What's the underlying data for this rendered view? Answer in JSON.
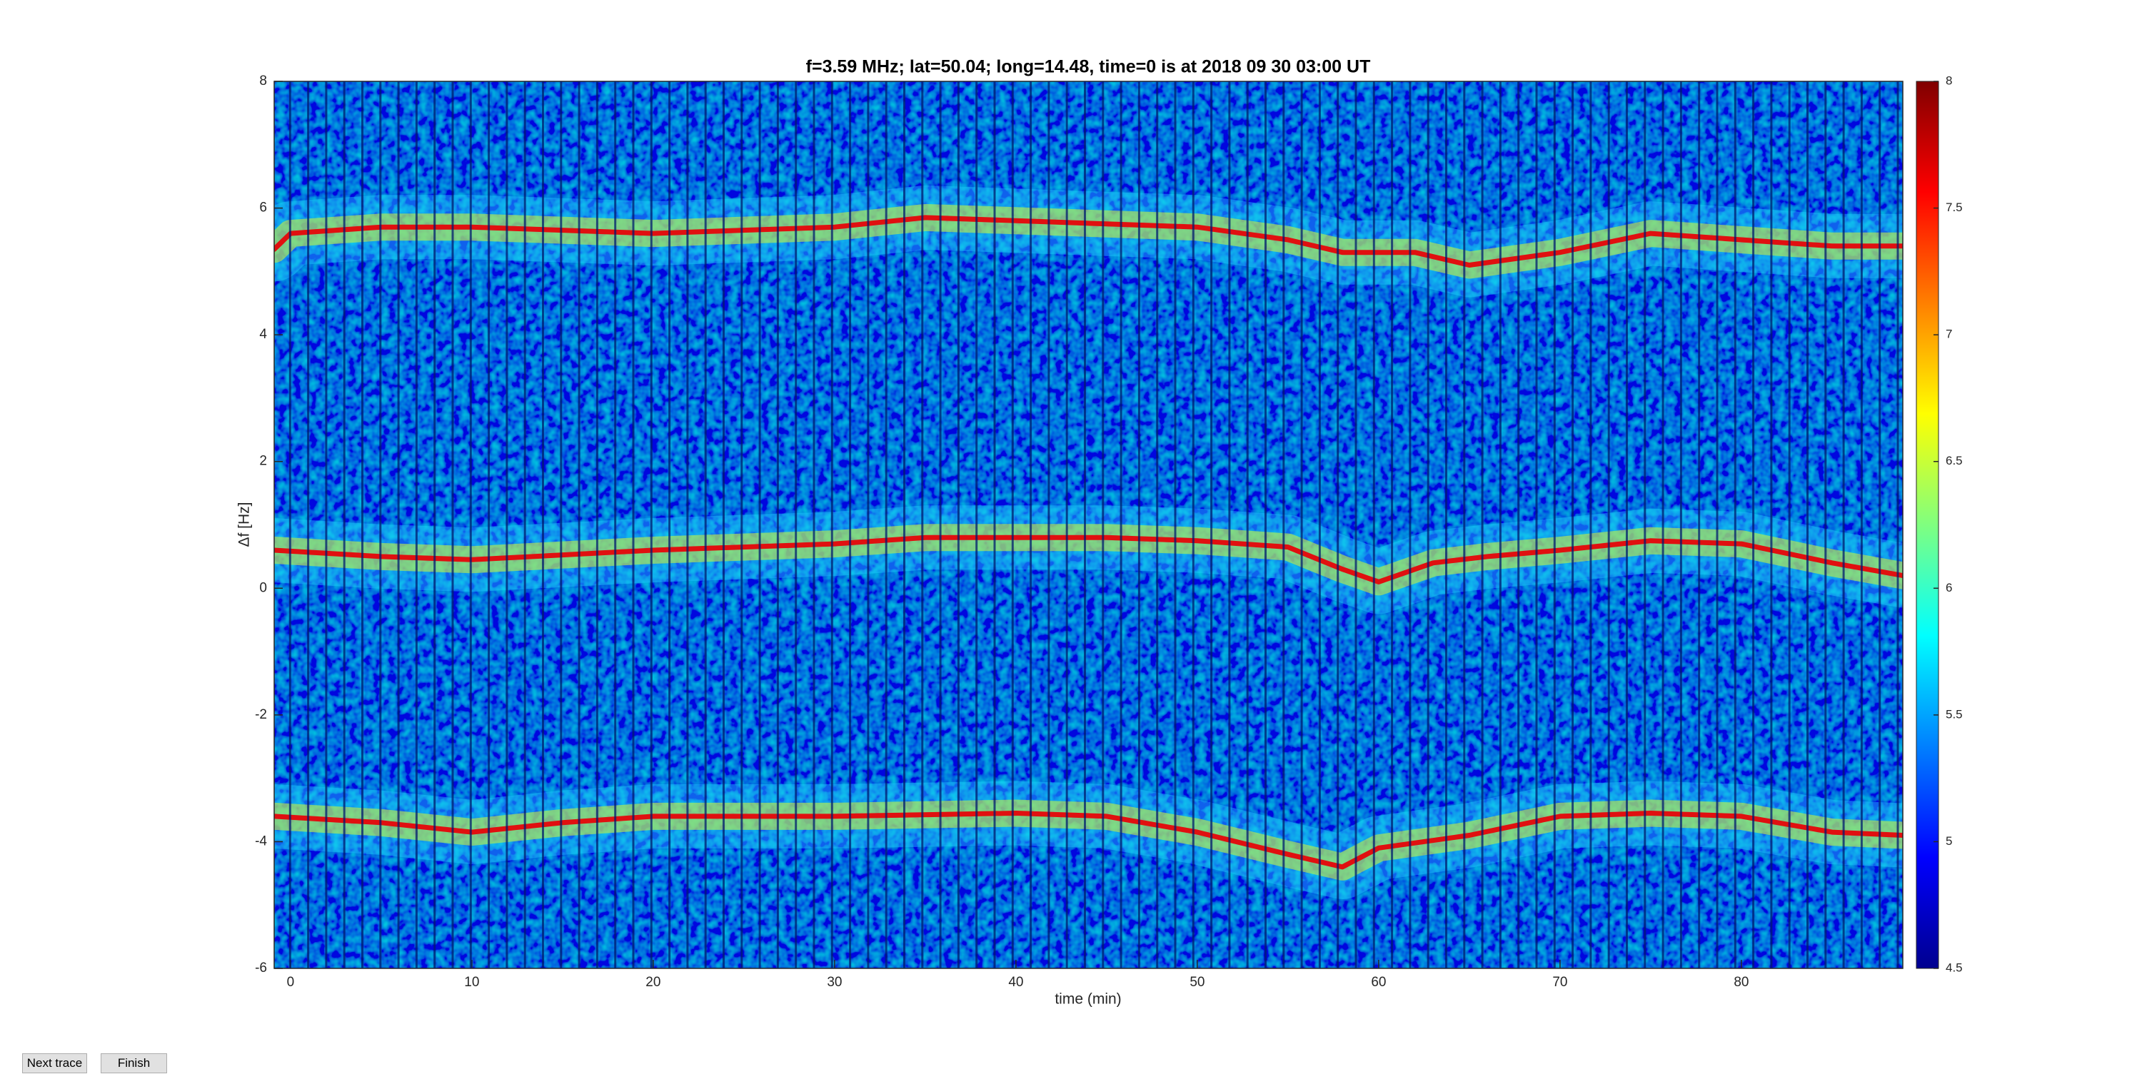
{
  "chart_data": {
    "type": "spectrogram",
    "title": "f=3.59 MHz;  lat=50.04; long=14.48, time=0 is at 2018 09 30 03:00 UT",
    "xlabel": "time (min)",
    "ylabel": "Δf [Hz]",
    "xlim": [
      -0.9,
      88.9
    ],
    "xticks": [
      0,
      10,
      20,
      30,
      40,
      50,
      60,
      70,
      80
    ],
    "ylim": [
      -6,
      8
    ],
    "yticks": [
      -6,
      -4,
      -2,
      0,
      2,
      4,
      6,
      8
    ],
    "colormap": "jet",
    "clim": [
      4.5,
      8
    ],
    "cticks": [
      4.5,
      5,
      5.5,
      6,
      6.5,
      7,
      7.5,
      8
    ],
    "series": [
      {
        "color": "#e01010",
        "x": [
          -0.9,
          0,
          5,
          10,
          20,
          30,
          35,
          40,
          45,
          50,
          55,
          58,
          60,
          62,
          65,
          70,
          75,
          80,
          85,
          88.9
        ],
        "values": [
          5.35,
          5.6,
          5.7,
          5.7,
          5.6,
          5.7,
          5.85,
          5.8,
          5.75,
          5.7,
          5.5,
          5.3,
          5.3,
          5.3,
          5.1,
          5.3,
          5.6,
          5.5,
          5.4,
          5.4
        ]
      },
      {
        "color": "#e01010",
        "x": [
          -0.9,
          5,
          10,
          20,
          30,
          35,
          40,
          45,
          50,
          55,
          58,
          60,
          63,
          66,
          70,
          75,
          80,
          85,
          88.9
        ],
        "values": [
          0.6,
          0.5,
          0.45,
          0.6,
          0.7,
          0.8,
          0.8,
          0.8,
          0.75,
          0.65,
          0.3,
          0.1,
          0.4,
          0.5,
          0.6,
          0.75,
          0.7,
          0.4,
          0.2
        ]
      },
      {
        "color": "#e01010",
        "x": [
          -0.9,
          5,
          10,
          15,
          20,
          30,
          40,
          45,
          50,
          55,
          58,
          60,
          65,
          70,
          75,
          80,
          85,
          88.9
        ],
        "values": [
          -3.6,
          -3.7,
          -3.85,
          -3.7,
          -3.6,
          -3.6,
          -3.55,
          -3.6,
          -3.85,
          -4.2,
          -4.4,
          -4.1,
          -3.9,
          -3.6,
          -3.55,
          -3.6,
          -3.85,
          -3.9
        ]
      }
    ]
  },
  "buttons": [
    "Next trace",
    "Finish"
  ]
}
